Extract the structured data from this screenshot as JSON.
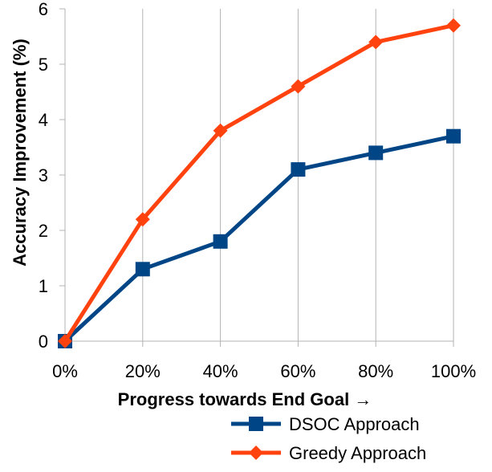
{
  "chart_data": {
    "type": "line",
    "categories": [
      "0%",
      "20%",
      "40%",
      "60%",
      "80%",
      "100%"
    ],
    "series": [
      {
        "name": "DSOC Approach",
        "values": [
          0,
          1.3,
          1.8,
          3.1,
          3.4,
          3.7
        ],
        "color": "#004586",
        "marker": "square"
      },
      {
        "name": "Greedy Approach",
        "values": [
          0,
          2.2,
          3.8,
          4.6,
          5.4,
          5.7
        ],
        "color": "#ff420e",
        "marker": "diamond"
      }
    ],
    "xlabel": "Progress towards End Goal →",
    "ylabel": "Accuracy Improvement (%)",
    "ylim": [
      0,
      6
    ],
    "yticks": [
      "0",
      "1",
      "2",
      "3",
      "4",
      "5",
      "6"
    ],
    "grid": "vertical",
    "legend": "bottom-right"
  }
}
